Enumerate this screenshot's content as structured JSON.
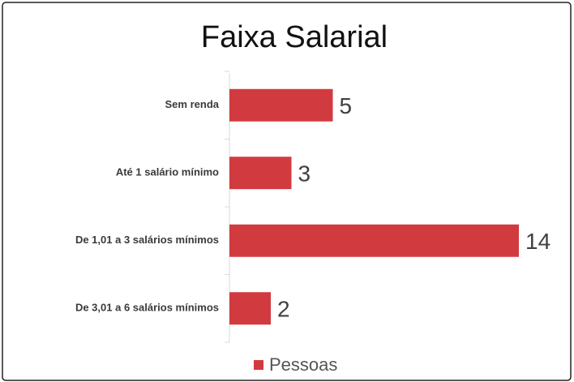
{
  "chart_data": {
    "type": "bar",
    "orientation": "horizontal",
    "title": "Faixa Salarial",
    "categories": [
      "Sem renda",
      "Até 1 salário mínimo",
      "De 1,01 a 3 salários mínimos",
      "De 3,01 a 6  salários mínimos"
    ],
    "series": [
      {
        "name": "Pessoas",
        "color": "#d13b40",
        "values": [
          5,
          3,
          14,
          2
        ]
      }
    ],
    "legend": "bottom"
  }
}
